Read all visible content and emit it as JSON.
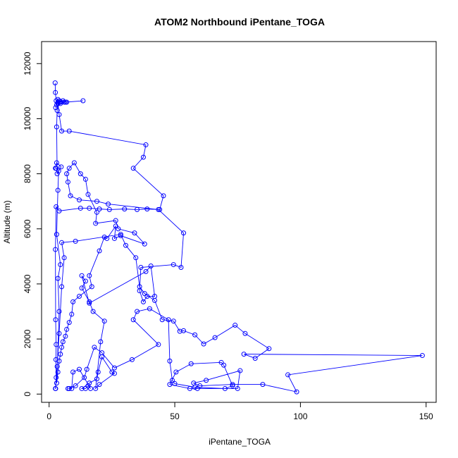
{
  "chart_data": {
    "type": "line",
    "title": "ATOM2 Northbound iPentane_TOGA",
    "xlabel": "iPentane_TOGA",
    "ylabel": "Altitude (m)",
    "xlim": [
      -3,
      154
    ],
    "ylim": [
      -300,
      12800
    ],
    "xticks": [
      0,
      50,
      100,
      150
    ],
    "yticks": [
      0,
      2000,
      4000,
      6000,
      8000,
      10000,
      12000
    ],
    "grid": false,
    "legend": "none",
    "markers": "open-circle",
    "series": [
      {
        "color": "#0000ff",
        "points": [
          [
            2.4,
            11300
          ],
          [
            2.5,
            10950
          ],
          [
            2.8,
            10650
          ],
          [
            3.0,
            10500
          ],
          [
            3.5,
            10700
          ],
          [
            4.5,
            10600
          ],
          [
            5.5,
            10650
          ],
          [
            7.0,
            10600
          ],
          [
            13.5,
            10650
          ],
          [
            6.5,
            10600
          ],
          [
            4.5,
            10620
          ],
          [
            3.5,
            10600
          ],
          [
            4.0,
            10150
          ],
          [
            5.0,
            9550
          ],
          [
            8.0,
            9550
          ],
          [
            38.5,
            9050
          ],
          [
            37.5,
            8600
          ],
          [
            33.5,
            8200
          ],
          [
            45.5,
            7200
          ],
          [
            44.0,
            6700
          ],
          [
            39.0,
            6720
          ],
          [
            35.0,
            6700
          ],
          [
            30.0,
            6720
          ],
          [
            24.0,
            6700
          ],
          [
            20.0,
            6720
          ],
          [
            16.0,
            6750
          ],
          [
            12.5,
            6750
          ],
          [
            4.0,
            6650
          ],
          [
            2.8,
            6800
          ],
          [
            2.5,
            5250
          ],
          [
            2.6,
            2700
          ],
          [
            2.8,
            1800
          ],
          [
            2.7,
            1250
          ],
          [
            2.8,
            600
          ],
          [
            2.6,
            200
          ],
          [
            2.5,
            200
          ],
          [
            3.2,
            1000
          ],
          [
            4.0,
            2200
          ],
          [
            5.0,
            3900
          ],
          [
            6.0,
            4950
          ],
          [
            5.0,
            5500
          ],
          [
            10.5,
            5550
          ],
          [
            28.5,
            5800
          ],
          [
            30.5,
            5400
          ],
          [
            34.5,
            4950
          ],
          [
            36.0,
            3900
          ],
          [
            38.0,
            3650
          ],
          [
            42.0,
            3400
          ],
          [
            45.0,
            2700
          ],
          [
            49.5,
            2650
          ],
          [
            52.0,
            2280
          ],
          [
            53.5,
            2300
          ],
          [
            58.0,
            2150
          ],
          [
            61.5,
            1820
          ],
          [
            66.0,
            2050
          ],
          [
            74.0,
            2500
          ],
          [
            78.0,
            2200
          ],
          [
            87.5,
            1650
          ],
          [
            82.0,
            1300
          ],
          [
            77.5,
            1450
          ],
          [
            148.5,
            1400
          ],
          [
            95.0,
            700
          ],
          [
            98.5,
            80
          ],
          [
            85.0,
            350
          ],
          [
            73.0,
            350
          ],
          [
            60.0,
            300
          ],
          [
            57.5,
            400
          ],
          [
            62.5,
            500
          ],
          [
            76.0,
            850
          ],
          [
            75.0,
            200
          ],
          [
            59.0,
            200
          ],
          [
            56.0,
            200
          ],
          [
            48.0,
            350
          ],
          [
            50.5,
            800
          ],
          [
            56.5,
            1100
          ],
          [
            68.5,
            1150
          ],
          [
            69.5,
            1050
          ],
          [
            73.0,
            300
          ],
          [
            70.0,
            200
          ],
          [
            58.0,
            250
          ],
          [
            50.0,
            380
          ],
          [
            49.0,
            500
          ],
          [
            48.0,
            1200
          ],
          [
            47.5,
            2700
          ],
          [
            40.0,
            3100
          ],
          [
            35.0,
            3000
          ],
          [
            33.5,
            2700
          ],
          [
            43.5,
            1800
          ],
          [
            33.0,
            1250
          ],
          [
            26.0,
            950
          ],
          [
            21.0,
            1500
          ],
          [
            18.0,
            1700
          ],
          [
            15.0,
            900
          ],
          [
            14.0,
            600
          ],
          [
            10.5,
            300
          ],
          [
            8.0,
            200
          ],
          [
            7.5,
            200
          ],
          [
            9.0,
            200
          ],
          [
            9.5,
            800
          ],
          [
            12.0,
            900
          ],
          [
            16.5,
            200
          ],
          [
            15.5,
            300
          ],
          [
            14.5,
            200
          ],
          [
            13.0,
            200
          ],
          [
            16.0,
            400
          ],
          [
            19.0,
            550
          ],
          [
            19.5,
            800
          ],
          [
            21.0,
            1350
          ],
          [
            25.0,
            800
          ],
          [
            26.0,
            750
          ],
          [
            20.0,
            350
          ],
          [
            18.5,
            200
          ],
          [
            20.5,
            1900
          ],
          [
            22.0,
            2650
          ],
          [
            17.5,
            3000
          ],
          [
            16.0,
            3350
          ],
          [
            13.0,
            3850
          ],
          [
            14.5,
            4100
          ],
          [
            13.0,
            4300
          ],
          [
            16.0,
            3300
          ],
          [
            38.5,
            4450
          ],
          [
            40.5,
            4650
          ],
          [
            42.0,
            3550
          ],
          [
            39.0,
            3550
          ],
          [
            37.5,
            3350
          ],
          [
            36.0,
            3750
          ],
          [
            36.5,
            4600
          ],
          [
            49.5,
            4700
          ],
          [
            52.5,
            4600
          ],
          [
            53.5,
            5850
          ],
          [
            43.5,
            6700
          ],
          [
            23.5,
            6900
          ],
          [
            19.0,
            7000
          ],
          [
            12.0,
            7050
          ],
          [
            8.5,
            7200
          ],
          [
            7.5,
            7700
          ],
          [
            7.0,
            8000
          ],
          [
            8.0,
            8200
          ],
          [
            10.0,
            8400
          ],
          [
            12.5,
            8000
          ],
          [
            14.5,
            7800
          ],
          [
            15.5,
            7250
          ],
          [
            19.0,
            6600
          ],
          [
            18.5,
            6200
          ],
          [
            26.5,
            6300
          ],
          [
            27.5,
            6000
          ],
          [
            34.0,
            5850
          ],
          [
            38.0,
            5450
          ],
          [
            28.5,
            5750
          ],
          [
            26.0,
            5650
          ],
          [
            26.5,
            6100
          ],
          [
            23.0,
            5650
          ],
          [
            22.0,
            5700
          ],
          [
            20.0,
            5200
          ],
          [
            16.0,
            4300
          ],
          [
            17.0,
            3900
          ],
          [
            12.0,
            3550
          ],
          [
            9.5,
            3350
          ],
          [
            9.0,
            2900
          ],
          [
            8.0,
            2600
          ],
          [
            7.0,
            2350
          ],
          [
            6.5,
            2100
          ],
          [
            5.5,
            1900
          ],
          [
            5.0,
            1700
          ],
          [
            4.5,
            1450
          ],
          [
            4.0,
            1200
          ],
          [
            3.5,
            800
          ],
          [
            3.0,
            400
          ],
          [
            4.0,
            3000
          ],
          [
            3.5,
            4200
          ],
          [
            4.5,
            4700
          ],
          [
            3.0,
            5800
          ],
          [
            3.5,
            7400
          ],
          [
            3.8,
            8100
          ],
          [
            2.8,
            8200
          ],
          [
            2.5,
            8200
          ],
          [
            3.0,
            8400
          ],
          [
            4.8,
            8250
          ],
          [
            3.2,
            8000
          ],
          [
            3.0,
            9700
          ],
          [
            3.2,
            10300
          ],
          [
            3.5,
            10550
          ],
          [
            4.0,
            10650
          ],
          [
            6.0,
            10600
          ],
          [
            4.5,
            10550
          ],
          [
            2.6,
            10400
          ]
        ]
      }
    ]
  }
}
